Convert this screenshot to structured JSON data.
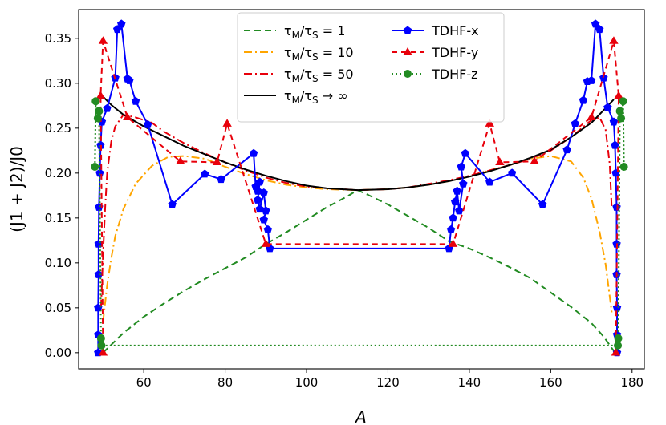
{
  "chart_data": {
    "type": "line",
    "title": "",
    "xlabel": "A",
    "ylabel": "(J1 + J2)/J0",
    "xlim": [
      44,
      183
    ],
    "ylim": [
      -0.018,
      0.382
    ],
    "x_ticks": [
      60,
      80,
      100,
      120,
      140,
      160,
      180
    ],
    "y_ticks": [
      0.0,
      0.05,
      0.1,
      0.15,
      0.2,
      0.25,
      0.3,
      0.35
    ],
    "legend_position": "top-center",
    "series": [
      {
        "name": "τM/τS = 1",
        "legend": "τ_M/τ_S = 1",
        "color": "#228B22",
        "dash": "8,5",
        "marker": "none",
        "points": [
          [
            50,
            0
          ],
          [
            55,
            0.022
          ],
          [
            60,
            0.04
          ],
          [
            65,
            0.055
          ],
          [
            70,
            0.069
          ],
          [
            75,
            0.082
          ],
          [
            80,
            0.094
          ],
          [
            85,
            0.106
          ],
          [
            90,
            0.121
          ],
          [
            95,
            0.134
          ],
          [
            100,
            0.148
          ],
          [
            105,
            0.162
          ],
          [
            110,
            0.174
          ],
          [
            112.5,
            0.181
          ],
          [
            115,
            0.176
          ],
          [
            120,
            0.165
          ],
          [
            125,
            0.152
          ],
          [
            130,
            0.139
          ],
          [
            135,
            0.124
          ],
          [
            140,
            0.116
          ],
          [
            145,
            0.106
          ],
          [
            150,
            0.095
          ],
          [
            155,
            0.083
          ],
          [
            160,
            0.067
          ],
          [
            165,
            0.051
          ],
          [
            170,
            0.033
          ],
          [
            173,
            0.018
          ],
          [
            175.5,
            0.002
          ]
        ]
      },
      {
        "name": "τM/τS = 10",
        "legend": "τ_M/τ_S = 10",
        "color": "#FFA500",
        "dash": "10,4,2,4",
        "marker": "none",
        "points": [
          [
            50,
            0.035
          ],
          [
            51,
            0.075
          ],
          [
            52,
            0.105
          ],
          [
            53,
            0.13
          ],
          [
            55,
            0.16
          ],
          [
            58,
            0.188
          ],
          [
            62,
            0.208
          ],
          [
            66,
            0.218
          ],
          [
            70,
            0.219
          ],
          [
            75,
            0.216
          ],
          [
            80,
            0.207
          ],
          [
            85,
            0.199
          ],
          [
            90,
            0.192
          ],
          [
            95,
            0.187
          ],
          [
            100,
            0.184
          ],
          [
            105,
            0.182
          ],
          [
            112.5,
            0.181
          ],
          [
            120,
            0.182
          ],
          [
            125,
            0.184
          ],
          [
            130,
            0.187
          ],
          [
            135,
            0.191
          ],
          [
            140,
            0.196
          ],
          [
            145,
            0.203
          ],
          [
            150,
            0.209
          ],
          [
            155,
            0.216
          ],
          [
            160,
            0.219
          ],
          [
            165,
            0.213
          ],
          [
            168,
            0.195
          ],
          [
            170,
            0.172
          ],
          [
            172,
            0.135
          ],
          [
            173.5,
            0.098
          ],
          [
            175,
            0.045
          ]
        ]
      },
      {
        "name": "τM/τS = 50",
        "legend": "τ_M/τ_S = 50",
        "color": "#E8000B",
        "dash": "10,4,2,4",
        "marker": "none",
        "points": [
          [
            49.5,
            0.05
          ],
          [
            50,
            0.11
          ],
          [
            50.5,
            0.16
          ],
          [
            51,
            0.2
          ],
          [
            52,
            0.235
          ],
          [
            53,
            0.252
          ],
          [
            55,
            0.265
          ],
          [
            58,
            0.262
          ],
          [
            62,
            0.256
          ],
          [
            65,
            0.246
          ],
          [
            70,
            0.233
          ],
          [
            75,
            0.222
          ],
          [
            80,
            0.212
          ],
          [
            85,
            0.203
          ],
          [
            90,
            0.195
          ],
          [
            95,
            0.189
          ],
          [
            100,
            0.185
          ],
          [
            105,
            0.183
          ],
          [
            112.5,
            0.181
          ],
          [
            120,
            0.182
          ],
          [
            125,
            0.184
          ],
          [
            130,
            0.188
          ],
          [
            135,
            0.192
          ],
          [
            140,
            0.197
          ],
          [
            145,
            0.203
          ],
          [
            150,
            0.209
          ],
          [
            155,
            0.216
          ],
          [
            160,
            0.225
          ],
          [
            165,
            0.24
          ],
          [
            170,
            0.259
          ],
          [
            172,
            0.262
          ],
          [
            173.5,
            0.248
          ],
          [
            174.5,
            0.21
          ],
          [
            175,
            0.16
          ]
        ]
      },
      {
        "name": "τM/τS → ∞",
        "legend": "τ_M/τ_S → ∞",
        "color": "#000000",
        "dash": "",
        "marker": "none",
        "points": [
          [
            50,
            0.285
          ],
          [
            52,
            0.276
          ],
          [
            55,
            0.265
          ],
          [
            60,
            0.252
          ],
          [
            65,
            0.241
          ],
          [
            70,
            0.23
          ],
          [
            75,
            0.221
          ],
          [
            80,
            0.212
          ],
          [
            85,
            0.204
          ],
          [
            90,
            0.197
          ],
          [
            95,
            0.191
          ],
          [
            100,
            0.186
          ],
          [
            105,
            0.183
          ],
          [
            112.5,
            0.181
          ],
          [
            120,
            0.182
          ],
          [
            125,
            0.184
          ],
          [
            130,
            0.187
          ],
          [
            135,
            0.191
          ],
          [
            140,
            0.196
          ],
          [
            145,
            0.202
          ],
          [
            150,
            0.209
          ],
          [
            155,
            0.217
          ],
          [
            160,
            0.226
          ],
          [
            165,
            0.24
          ],
          [
            170,
            0.256
          ],
          [
            173,
            0.27
          ],
          [
            175.5,
            0.282
          ]
        ]
      },
      {
        "name": "TDHF-x",
        "legend": "TDHF-x",
        "color": "#0000FF",
        "dash": "",
        "marker": "pentagon",
        "points": [
          [
            48.8,
            0.0
          ],
          [
            48.8,
            0.02
          ],
          [
            48.8,
            0.05
          ],
          [
            48.9,
            0.087
          ],
          [
            48.9,
            0.121
          ],
          [
            49.0,
            0.162
          ],
          [
            49.2,
            0.2
          ],
          [
            49.4,
            0.231
          ],
          [
            49.7,
            0.257
          ],
          [
            51,
            0.272
          ],
          [
            53,
            0.306
          ],
          [
            53.5,
            0.36
          ],
          [
            54.5,
            0.366
          ],
          [
            56,
            0.305
          ],
          [
            56.5,
            0.303
          ],
          [
            58,
            0.28
          ],
          [
            61,
            0.254
          ],
          [
            67,
            0.165
          ],
          [
            75,
            0.199
          ],
          [
            79,
            0.193
          ],
          [
            87,
            0.222
          ],
          [
            87.5,
            0.185
          ],
          [
            88,
            0.18
          ],
          [
            88.5,
            0.19
          ],
          [
            88,
            0.17
          ],
          [
            88.5,
            0.16
          ],
          [
            89.5,
            0.178
          ],
          [
            90,
            0.158
          ],
          [
            89.5,
            0.148
          ],
          [
            90.5,
            0.137
          ],
          [
            91,
            0.116
          ],
          [
            135,
            0.116
          ],
          [
            135.5,
            0.137
          ],
          [
            136,
            0.15
          ],
          [
            136.5,
            0.168
          ],
          [
            137,
            0.18
          ],
          [
            137.5,
            0.158
          ],
          [
            138.5,
            0.188
          ],
          [
            138,
            0.207
          ],
          [
            139,
            0.222
          ],
          [
            145,
            0.19
          ],
          [
            150.5,
            0.2
          ],
          [
            158,
            0.165
          ],
          [
            164,
            0.226
          ],
          [
            166,
            0.255
          ],
          [
            168,
            0.281
          ],
          [
            169,
            0.302
          ],
          [
            170,
            0.303
          ],
          [
            171,
            0.366
          ],
          [
            172,
            0.36
          ],
          [
            173,
            0.306
          ],
          [
            174,
            0.273
          ],
          [
            175.5,
            0.257
          ],
          [
            175.8,
            0.231
          ],
          [
            176,
            0.2
          ],
          [
            176.2,
            0.162
          ],
          [
            176.2,
            0.121
          ],
          [
            176.2,
            0.087
          ],
          [
            176.3,
            0.05
          ],
          [
            176.3,
            0.02
          ],
          [
            176.3,
            0.0
          ]
        ]
      },
      {
        "name": "TDHF-y",
        "legend": "TDHF-y",
        "color": "#E8000B",
        "dash": "7,5",
        "marker": "triangle",
        "points": [
          [
            50,
            0.0
          ],
          [
            49.4,
            0.286
          ],
          [
            50,
            0.347
          ],
          [
            56,
            0.262
          ],
          [
            69,
            0.213
          ],
          [
            78,
            0.212
          ],
          [
            80.5,
            0.255
          ],
          [
            90,
            0.121
          ],
          [
            136,
            0.121
          ],
          [
            145,
            0.255
          ],
          [
            147.5,
            0.212
          ],
          [
            156,
            0.213
          ],
          [
            170,
            0.262
          ],
          [
            175.5,
            0.347
          ],
          [
            176.7,
            0.286
          ],
          [
            176,
            0.0
          ]
        ]
      },
      {
        "name": "TDHF-z",
        "legend": "TDHF-z",
        "color": "#228B22",
        "dash": "2,3",
        "marker": "circle",
        "points": [
          [
            48.0,
            0.207
          ],
          [
            48.2,
            0.28
          ],
          [
            48.7,
            0.261
          ],
          [
            49.0,
            0.269
          ],
          [
            49.5,
            0.016
          ],
          [
            49.6,
            0.008
          ],
          [
            176.5,
            0.008
          ],
          [
            176.6,
            0.016
          ],
          [
            177.0,
            0.269
          ],
          [
            177.3,
            0.261
          ],
          [
            177.8,
            0.28
          ],
          [
            178.0,
            0.207
          ]
        ]
      }
    ]
  }
}
